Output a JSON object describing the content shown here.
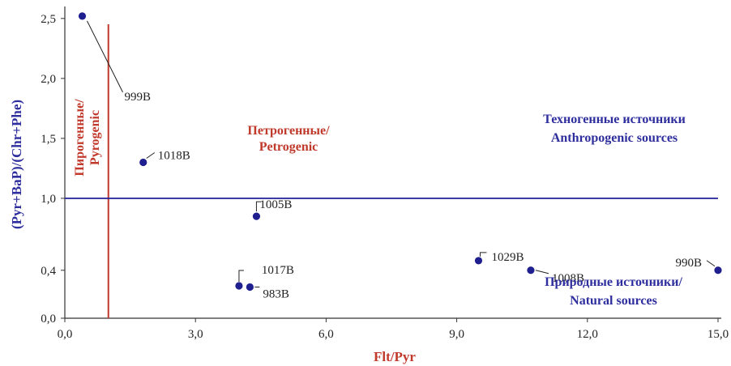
{
  "chart_data": {
    "type": "scatter",
    "xlabel": "Flt/Pyr",
    "ylabel": "(Pyr+BaP)/(Chr+Phe)",
    "xlim": [
      0,
      15
    ],
    "ylim": [
      0,
      2.6
    ],
    "x_ticks": [
      0,
      3,
      6,
      9,
      12,
      15
    ],
    "x_tick_labels": [
      "0,0",
      "3,0",
      "6,0",
      "9,0",
      "12,0",
      "15,0"
    ],
    "y_ticks": [
      0,
      0.4,
      1.0,
      1.5,
      2.0,
      2.5
    ],
    "y_tick_labels": [
      "0,0",
      "0,4",
      "1,0",
      "1,5",
      "2,0",
      "2,5"
    ],
    "grid": false,
    "point_color": "#1f1f8f",
    "points": [
      {
        "label": "999B",
        "x": 0.4,
        "y": 2.52
      },
      {
        "label": "1018B",
        "x": 1.8,
        "y": 1.3
      },
      {
        "label": "1005B",
        "x": 4.4,
        "y": 0.85
      },
      {
        "label": "1017B",
        "x": 4.0,
        "y": 0.27
      },
      {
        "label": "983B",
        "x": 4.25,
        "y": 0.26
      },
      {
        "label": "1029B",
        "x": 9.5,
        "y": 0.48
      },
      {
        "label": "1008B",
        "x": 10.7,
        "y": 0.4
      },
      {
        "label": "990B",
        "x": 15.0,
        "y": 0.4
      }
    ],
    "threshold_lines": [
      {
        "orientation": "vertical",
        "x": 1.0,
        "color": "#c0392b"
      },
      {
        "orientation": "horizontal",
        "y": 1.0,
        "color": "#2e2e9e"
      }
    ],
    "annotations": [
      {
        "lines": [
          "Пирогенные/",
          "Pyrogenic"
        ],
        "color": "#c0392b"
      },
      {
        "lines": [
          "Петрогенные/",
          "Petrogenic"
        ],
        "color": "#c0392b"
      },
      {
        "lines": [
          "Техногенные источники",
          "Anthropogenic sources"
        ],
        "color": "#2e2e9e"
      },
      {
        "lines": [
          "Природные источники/",
          "Natural sources"
        ],
        "color": "#2e2e9e"
      }
    ]
  }
}
